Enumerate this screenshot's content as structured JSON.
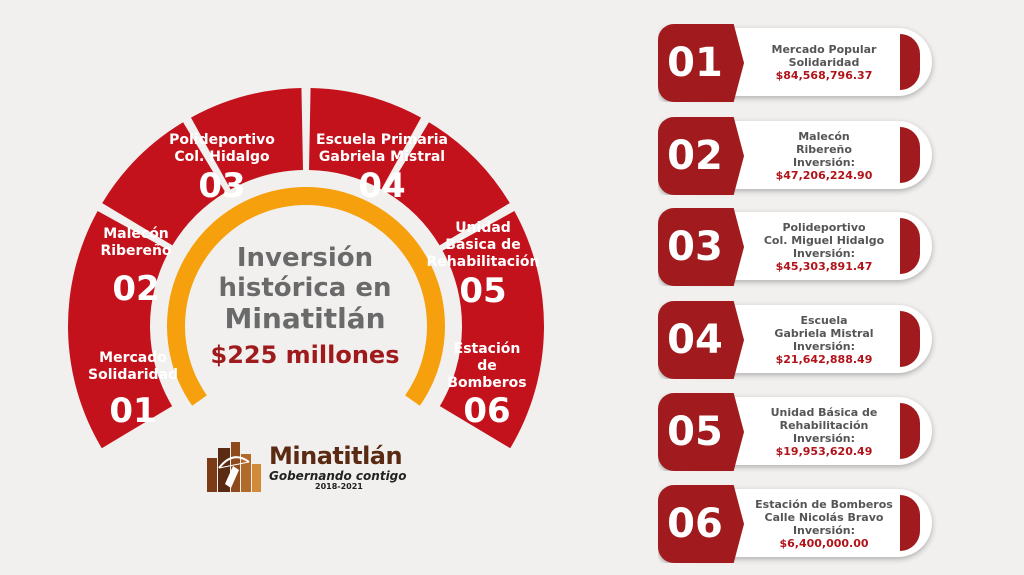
{
  "colors": {
    "background": "#f1f0ee",
    "segment_red": "#c4121c",
    "card_red": "#a01a1e",
    "ring_orange": "#f5a00c",
    "heading_gray": "#6a6a6a",
    "amount_red": "#b0141a"
  },
  "gauge": {
    "segments": [
      {
        "number": "01",
        "label_lines": [
          "Mercado",
          "Solidaridad"
        ]
      },
      {
        "number": "02",
        "label_lines": [
          "Malecón",
          "Ribereño"
        ]
      },
      {
        "number": "03",
        "label_lines": [
          "Polideportivo",
          "Col. Hidalgo"
        ]
      },
      {
        "number": "04",
        "label_lines": [
          "Escuela Primaria",
          "Gabriela Mistral"
        ]
      },
      {
        "number": "05",
        "label_lines": [
          "Unidad",
          "Básica de",
          "Rehabilitación"
        ]
      },
      {
        "number": "06",
        "label_lines": [
          "Estación",
          "de",
          "Bomberos"
        ]
      }
    ],
    "center": {
      "line1": "Inversión",
      "line2": "histórica en",
      "line3": "Minatitlán",
      "line4": "$225 millones"
    }
  },
  "logo": {
    "name": "Minatitlán",
    "tagline": "Gobernando contigo",
    "years": "2018-2021",
    "icon": "city-archer-logo-icon"
  },
  "cards": [
    {
      "number": "01",
      "title": "Mercado Popular\nSolidaridad",
      "amount": "$84,568,796.37"
    },
    {
      "number": "02",
      "title": "Malecón\nRibereño\nInversión:",
      "amount": "$47,206,224.90"
    },
    {
      "number": "03",
      "title": "Polideportivo\nCol. Miguel Hidalgo\nInversión:",
      "amount": "$45,303,891.47"
    },
    {
      "number": "04",
      "title": "Escuela\nGabriela Mistral\nInversión:",
      "amount": "$21,642,888.49"
    },
    {
      "number": "05",
      "title": "Unidad Básica de\nRehabilitación\nInversión:",
      "amount": "$19,953,620.49"
    },
    {
      "number": "06",
      "title": "Estación de Bomberos\nCalle Nicolás Bravo\nInversión:",
      "amount": "$6,400,000.00"
    }
  ]
}
